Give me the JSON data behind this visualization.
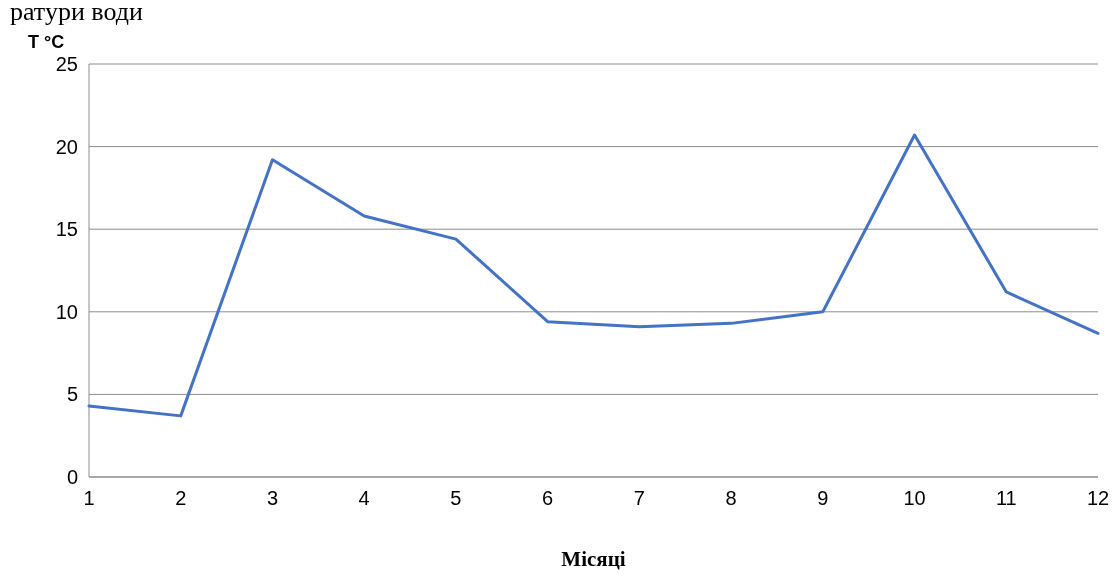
{
  "chart_data": {
    "type": "line",
    "title": "ратури води",
    "ylabel": "T °C",
    "xlabel": "Місяці",
    "x": [
      1,
      2,
      3,
      4,
      5,
      6,
      7,
      8,
      9,
      10,
      11,
      12
    ],
    "series": [
      {
        "color": "#4472c4",
        "values": [
          4.3,
          3.7,
          19.2,
          15.8,
          14.4,
          9.4,
          9.1,
          9.3,
          10.0,
          20.7,
          11.2,
          8.7
        ]
      }
    ],
    "xlim": [
      1,
      12
    ],
    "xticks": [
      1,
      2,
      3,
      4,
      5,
      6,
      7,
      8,
      9,
      10,
      11,
      12
    ],
    "ylim": [
      0,
      25
    ],
    "yticks": [
      0,
      5,
      10,
      15,
      20,
      25
    ],
    "grid": "y",
    "marker": "none",
    "line_style": "solid"
  }
}
